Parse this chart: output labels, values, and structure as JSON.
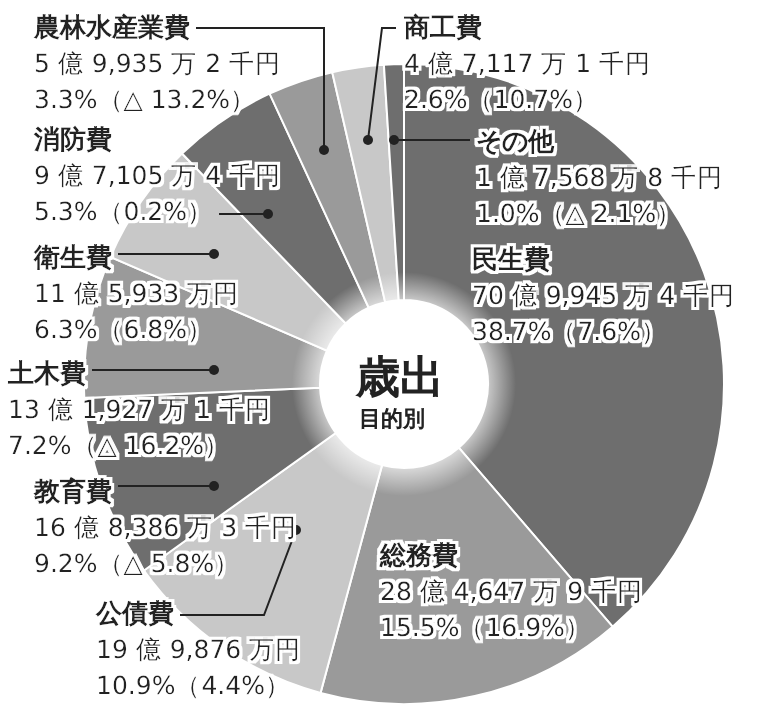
{
  "chart_data": {
    "type": "donut",
    "title": "歳出",
    "subtitle": "目的別",
    "categories": [
      "民生費",
      "総務費",
      "公債費",
      "教育費",
      "土木費",
      "衛生費",
      "消防費",
      "農林水産業費",
      "商工費",
      "その他"
    ],
    "values": [
      38.7,
      15.5,
      10.9,
      9.2,
      7.2,
      6.3,
      5.3,
      3.3,
      2.6,
      1.0
    ],
    "colors": [
      "#6e6e6e",
      "#9a9a9a",
      "#c8c8c8",
      "#6e6e6e",
      "#9a9a9a",
      "#c8c8c8",
      "#6e6e6e",
      "#9a9a9a",
      "#c8c8c8",
      "#6e6e6e"
    ],
    "value_labels": [
      "70 億 9,945 万 4 千円\n38.7%（7.6%）",
      "28 億 4,647 万 9 千円\n15.5%（16.9%）",
      "19 億 9,876 万円\n10.9%（4.4%）",
      "16 億 8,386 万 3 千円\n9.2%（△ 5.8%）",
      "13 億 1,927 万 1 千円\n7.2%（△ 16.2%）",
      "11 億 5,933 万円\n6.3%（6.8%）",
      "9 億 7,105 万 4 千円\n5.3%（0.2%）",
      "5 億 9,935 万 2 千円\n3.3%（△ 13.2%）",
      "4 億 7,117 万 1 千円\n2.6%（10.7%）",
      "1 億 7,568 万 8 千円\n1.0%（△ 2.1%）"
    ]
  }
}
